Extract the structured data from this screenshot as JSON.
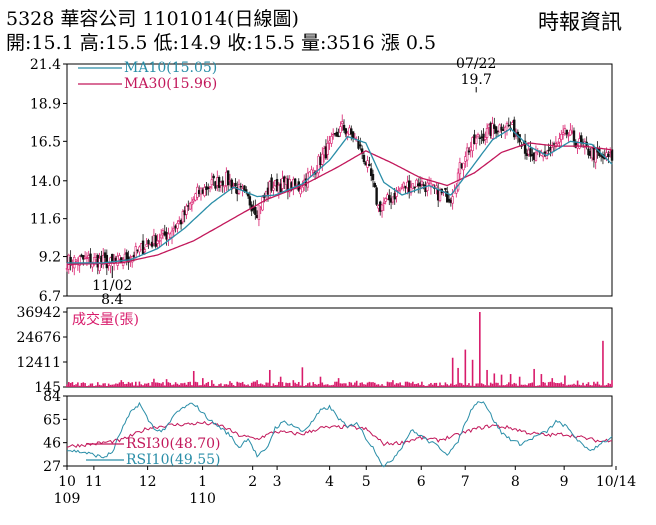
{
  "header": {
    "title": "5328 華容公司 1101014(日線圖)",
    "source": "時報資訊",
    "quote": "開:15.1 高:15.5 低:14.9 收:15.5 量:3516 漲 0.5"
  },
  "colors": {
    "up": "#d81b6b",
    "down": "#111111",
    "ma10": "#2a8ea8",
    "ma30": "#c2185b",
    "rsi30": "#c2185b",
    "rsi10": "#2a8ea8",
    "volume": "#d81b6b"
  },
  "chart_data": [
    {
      "type": "candlestick",
      "yticks": [
        "21.4",
        "18.9",
        "16.5",
        "14.0",
        "11.6",
        "9.2",
        "6.7"
      ],
      "ylim": [
        6.7,
        21.4
      ],
      "legend": [
        "MA10(15.05)",
        "MA30(15.96)"
      ],
      "annotations": [
        {
          "label_date": "07/22",
          "label_value": "19.7",
          "kind": "high"
        },
        {
          "label_date": "11/02",
          "label_value": "8.4",
          "kind": "low"
        }
      ],
      "close_path": [
        [
          0,
          8.9
        ],
        [
          10,
          9.0
        ],
        [
          20,
          8.9
        ],
        [
          25,
          8.7
        ],
        [
          35,
          9.2
        ],
        [
          45,
          10.0
        ],
        [
          55,
          10.6
        ],
        [
          63,
          11.5
        ],
        [
          72,
          13.2
        ],
        [
          80,
          13.8
        ],
        [
          88,
          14.1
        ],
        [
          95,
          13.4
        ],
        [
          100,
          12.8
        ],
        [
          105,
          12.1
        ],
        [
          112,
          13.6
        ],
        [
          120,
          13.8
        ],
        [
          128,
          13.6
        ],
        [
          135,
          14.5
        ],
        [
          145,
          16.2
        ],
        [
          152,
          17.4
        ],
        [
          158,
          16.8
        ],
        [
          163,
          15.8
        ],
        [
          168,
          14.2
        ],
        [
          172,
          12.3
        ],
        [
          178,
          12.8
        ],
        [
          185,
          13.6
        ],
        [
          195,
          13.9
        ],
        [
          205,
          13.2
        ],
        [
          212,
          13.0
        ],
        [
          220,
          15.8
        ],
        [
          228,
          16.8
        ],
        [
          236,
          17.3
        ],
        [
          242,
          17.6
        ],
        [
          250,
          16.9
        ],
        [
          256,
          15.3
        ],
        [
          262,
          15.6
        ],
        [
          270,
          16.2
        ],
        [
          276,
          17.0
        ],
        [
          282,
          16.4
        ],
        [
          288,
          15.9
        ],
        [
          295,
          15.4
        ],
        [
          301,
          15.5
        ]
      ],
      "ma10_path": [
        [
          0,
          8.8
        ],
        [
          20,
          8.8
        ],
        [
          35,
          9.0
        ],
        [
          50,
          9.7
        ],
        [
          65,
          11.0
        ],
        [
          80,
          12.6
        ],
        [
          92,
          13.6
        ],
        [
          105,
          13.0
        ],
        [
          115,
          13.1
        ],
        [
          130,
          13.8
        ],
        [
          145,
          15.3
        ],
        [
          155,
          16.8
        ],
        [
          165,
          16.4
        ],
        [
          175,
          13.9
        ],
        [
          185,
          13.1
        ],
        [
          200,
          13.7
        ],
        [
          212,
          13.1
        ],
        [
          222,
          14.6
        ],
        [
          235,
          16.6
        ],
        [
          245,
          17.3
        ],
        [
          255,
          16.2
        ],
        [
          265,
          15.6
        ],
        [
          278,
          16.5
        ],
        [
          290,
          16.3
        ],
        [
          301,
          15.05
        ]
      ],
      "ma30_path": [
        [
          0,
          8.7
        ],
        [
          30,
          8.8
        ],
        [
          50,
          9.3
        ],
        [
          70,
          10.2
        ],
        [
          90,
          11.5
        ],
        [
          110,
          12.8
        ],
        [
          130,
          13.7
        ],
        [
          150,
          14.9
        ],
        [
          165,
          15.9
        ],
        [
          180,
          15.1
        ],
        [
          195,
          14.2
        ],
        [
          210,
          13.7
        ],
        [
          225,
          14.5
        ],
        [
          240,
          15.8
        ],
        [
          255,
          16.4
        ],
        [
          270,
          16.2
        ],
        [
          285,
          16.2
        ],
        [
          301,
          15.96
        ]
      ]
    },
    {
      "type": "bar",
      "title": "成交量(張)",
      "yticks": [
        "36942",
        "24676",
        "12411",
        "145"
      ],
      "ylim": [
        145,
        36942
      ],
      "spikes": [
        [
          5,
          1500
        ],
        [
          18,
          1200
        ],
        [
          30,
          3500
        ],
        [
          40,
          2800
        ],
        [
          48,
          4200
        ],
        [
          55,
          4000
        ],
        [
          60,
          2500
        ],
        [
          65,
          2200
        ],
        [
          70,
          8000
        ],
        [
          75,
          4500
        ],
        [
          80,
          3500
        ],
        [
          90,
          3000
        ],
        [
          105,
          3500
        ],
        [
          112,
          8500
        ],
        [
          118,
          5200
        ],
        [
          125,
          3500
        ],
        [
          130,
          9800
        ],
        [
          140,
          5200
        ],
        [
          150,
          4500
        ],
        [
          160,
          3200
        ],
        [
          170,
          2200
        ],
        [
          180,
          3500
        ],
        [
          190,
          2000
        ],
        [
          200,
          1500
        ],
        [
          210,
          1500
        ],
        [
          212,
          1800
        ],
        [
          213,
          14500
        ],
        [
          216,
          9500
        ],
        [
          220,
          18500
        ],
        [
          224,
          13500
        ],
        [
          228,
          36942
        ],
        [
          232,
          8500
        ],
        [
          236,
          6800
        ],
        [
          240,
          6200
        ],
        [
          245,
          6500
        ],
        [
          250,
          5200
        ],
        [
          258,
          9000
        ],
        [
          262,
          6500
        ],
        [
          268,
          4500
        ],
        [
          275,
          5800
        ],
        [
          282,
          3300
        ],
        [
          288,
          2500
        ],
        [
          292,
          1800
        ],
        [
          296,
          22800
        ],
        [
          301,
          3516
        ]
      ]
    },
    {
      "type": "line",
      "yticks": [
        "84",
        "65",
        "46",
        "27"
      ],
      "ylim": [
        27,
        84
      ],
      "series": [
        {
          "name": "RSI30(48.70)",
          "values": [
            [
              0,
              43
            ],
            [
              15,
              45
            ],
            [
              30,
              48
            ],
            [
              45,
              58
            ],
            [
              55,
              60
            ],
            [
              65,
              61
            ],
            [
              75,
              62
            ],
            [
              85,
              60
            ],
            [
              95,
              52
            ],
            [
              105,
              49
            ],
            [
              115,
              55
            ],
            [
              130,
              53
            ],
            [
              140,
              58
            ],
            [
              155,
              59
            ],
            [
              165,
              57
            ],
            [
              175,
              45
            ],
            [
              185,
              46
            ],
            [
              195,
              50
            ],
            [
              205,
              48
            ],
            [
              215,
              52
            ],
            [
              225,
              57
            ],
            [
              235,
              60
            ],
            [
              245,
              58
            ],
            [
              255,
              54
            ],
            [
              265,
              52
            ],
            [
              275,
              53
            ],
            [
              285,
              50
            ],
            [
              295,
              47
            ],
            [
              301,
              48.7
            ]
          ]
        },
        {
          "name": "RSI10(49.55)",
          "values": [
            [
              0,
              40
            ],
            [
              10,
              38
            ],
            [
              20,
              34
            ],
            [
              25,
              38
            ],
            [
              30,
              56
            ],
            [
              35,
              70
            ],
            [
              40,
              78
            ],
            [
              45,
              64
            ],
            [
              50,
              55
            ],
            [
              55,
              58
            ],
            [
              60,
              70
            ],
            [
              65,
              75
            ],
            [
              70,
              78
            ],
            [
              75,
              70
            ],
            [
              80,
              63
            ],
            [
              85,
              58
            ],
            [
              90,
              52
            ],
            [
              95,
              42
            ],
            [
              100,
              50
            ],
            [
              105,
              35
            ],
            [
              110,
              40
            ],
            [
              115,
              58
            ],
            [
              120,
              63
            ],
            [
              125,
              60
            ],
            [
              130,
              55
            ],
            [
              135,
              62
            ],
            [
              140,
              72
            ],
            [
              145,
              75
            ],
            [
              150,
              66
            ],
            [
              155,
              58
            ],
            [
              160,
              63
            ],
            [
              165,
              50
            ],
            [
              170,
              40
            ],
            [
              175,
              26
            ],
            [
              180,
              33
            ],
            [
              185,
              43
            ],
            [
              190,
              56
            ],
            [
              195,
              52
            ],
            [
              200,
              47
            ],
            [
              205,
              43
            ],
            [
              210,
              37
            ],
            [
              215,
              44
            ],
            [
              220,
              62
            ],
            [
              225,
              78
            ],
            [
              230,
              80
            ],
            [
              235,
              66
            ],
            [
              240,
              54
            ],
            [
              245,
              49
            ],
            [
              250,
              45
            ],
            [
              255,
              48
            ],
            [
              260,
              52
            ],
            [
              265,
              55
            ],
            [
              270,
              63
            ],
            [
              275,
              60
            ],
            [
              280,
              52
            ],
            [
              285,
              43
            ],
            [
              290,
              40
            ],
            [
              295,
              46
            ],
            [
              301,
              49.55
            ]
          ]
        }
      ]
    }
  ],
  "xaxis": {
    "months": [
      {
        "label": "10",
        "sub": "109"
      },
      {
        "label": "11",
        "sub": ""
      },
      {
        "label": "12",
        "sub": ""
      },
      {
        "label": "1",
        "sub": "110"
      },
      {
        "label": "2",
        "sub": ""
      },
      {
        "label": "3",
        "sub": ""
      },
      {
        "label": "4",
        "sub": ""
      },
      {
        "label": "5",
        "sub": ""
      },
      {
        "label": "6",
        "sub": ""
      },
      {
        "label": "7",
        "sub": ""
      },
      {
        "label": "8",
        "sub": ""
      },
      {
        "label": "9",
        "sub": ""
      },
      {
        "label": "10/14",
        "sub": ""
      }
    ]
  }
}
